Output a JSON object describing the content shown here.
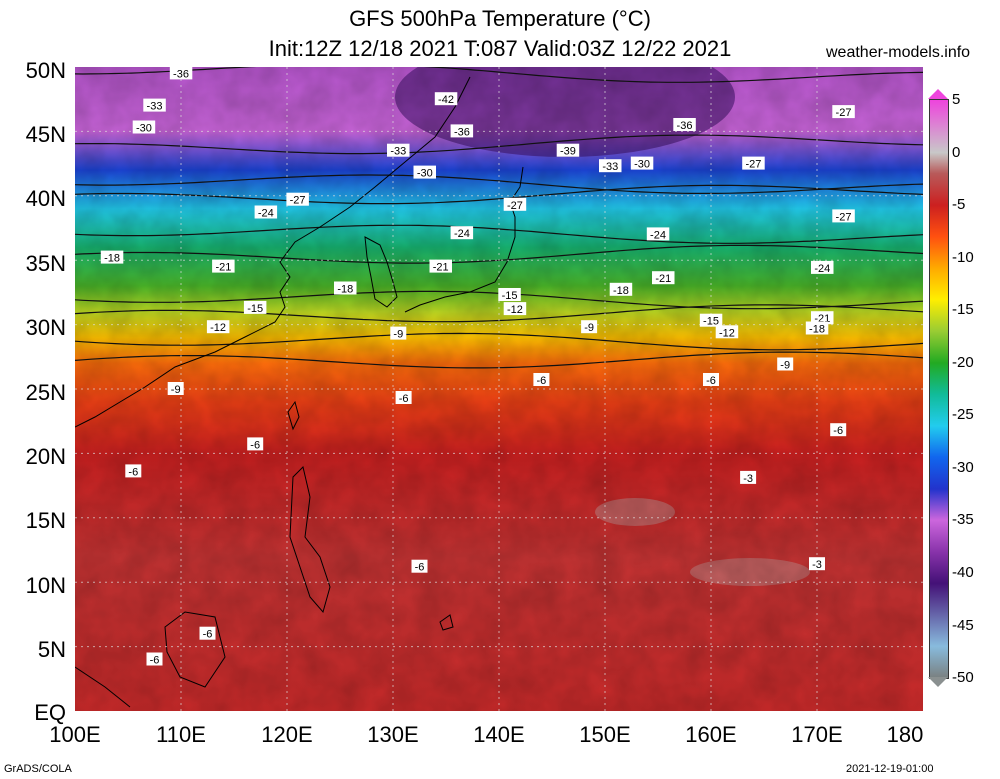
{
  "header": {
    "title_line1": "GFS 500hPa Temperature (°C)",
    "title_line2": "Init:12Z 12/18 2021 T:087 Valid:03Z 12/22 2021",
    "brand": "weather-models.info"
  },
  "footer": {
    "left": "GrADS/COLA",
    "right": "2021-12-19-01:00"
  },
  "axes": {
    "lat_labels": [
      "50N",
      "45N",
      "40N",
      "35N",
      "30N",
      "25N",
      "20N",
      "15N",
      "10N",
      "5N",
      "EQ"
    ],
    "lon_labels": [
      "100E",
      "110E",
      "120E",
      "130E",
      "140E",
      "150E",
      "160E",
      "170E",
      "180"
    ]
  },
  "colorbar": {
    "labels": [
      "5",
      "0",
      "-5",
      "-10",
      "-15",
      "-20",
      "-25",
      "-30",
      "-35",
      "-40",
      "-45",
      "-50"
    ],
    "stops": [
      {
        "value": 5,
        "color": "#ee44dd"
      },
      {
        "value": 0,
        "color": "#c8c8c8"
      },
      {
        "value": -2,
        "color": "#b85a5a"
      },
      {
        "value": -5,
        "color": "#cc2020"
      },
      {
        "value": -8,
        "color": "#ff5010"
      },
      {
        "value": -11,
        "color": "#ffaa00"
      },
      {
        "value": -14,
        "color": "#ffee00"
      },
      {
        "value": -17,
        "color": "#99cc33"
      },
      {
        "value": -20,
        "color": "#22aa22"
      },
      {
        "value": -23,
        "color": "#11bb99"
      },
      {
        "value": -26,
        "color": "#22ccee"
      },
      {
        "value": -29,
        "color": "#1166ee"
      },
      {
        "value": -32,
        "color": "#2233cc"
      },
      {
        "value": -35,
        "color": "#cc66dd"
      },
      {
        "value": -38,
        "color": "#8833aa"
      },
      {
        "value": -41,
        "color": "#441177"
      },
      {
        "value": -44,
        "color": "#6666aa"
      },
      {
        "value": -47,
        "color": "#88bbdd"
      },
      {
        "value": -50,
        "color": "#7a8080"
      }
    ]
  },
  "map": {
    "lon_range": [
      100,
      180
    ],
    "lat_range": [
      0,
      50
    ],
    "temperature_bands": [
      {
        "lat": 50,
        "temp": -36
      },
      {
        "lat": 45,
        "temp": -35
      },
      {
        "lat": 42,
        "temp": -31
      },
      {
        "lat": 39,
        "temp": -26
      },
      {
        "lat": 36,
        "temp": -22
      },
      {
        "lat": 33,
        "temp": -19
      },
      {
        "lat": 31,
        "temp": -16
      },
      {
        "lat": 29,
        "temp": -12
      },
      {
        "lat": 27,
        "temp": -9
      },
      {
        "lat": 24,
        "temp": -7
      },
      {
        "lat": 20,
        "temp": -5
      },
      {
        "lat": 12,
        "temp": -4
      },
      {
        "lat": 0,
        "temp": -4.5
      }
    ],
    "contour_labels": [
      {
        "text": "-36",
        "lon": 110,
        "lat": 49.5
      },
      {
        "text": "-33",
        "lon": 107.5,
        "lat": 47
      },
      {
        "text": "-42",
        "lon": 135,
        "lat": 47.5
      },
      {
        "text": "-30",
        "lon": 106.5,
        "lat": 45.3
      },
      {
        "text": "-36",
        "lon": 136.5,
        "lat": 45
      },
      {
        "text": "-39",
        "lon": 146.5,
        "lat": 43.5
      },
      {
        "text": "-36",
        "lon": 157.5,
        "lat": 45.5
      },
      {
        "text": "-27",
        "lon": 172.5,
        "lat": 46.5
      },
      {
        "text": "-33",
        "lon": 130.5,
        "lat": 43.5
      },
      {
        "text": "-33",
        "lon": 150.5,
        "lat": 42.3
      },
      {
        "text": "-30",
        "lon": 153.5,
        "lat": 42.5
      },
      {
        "text": "-27",
        "lon": 164,
        "lat": 42.5
      },
      {
        "text": "-30",
        "lon": 133,
        "lat": 41.8
      },
      {
        "text": "-27",
        "lon": 121,
        "lat": 39.7
      },
      {
        "text": "-24",
        "lon": 118,
        "lat": 38.7
      },
      {
        "text": "-27",
        "lon": 141.5,
        "lat": 39.3
      },
      {
        "text": "-27",
        "lon": 172.5,
        "lat": 38.4
      },
      {
        "text": "-24",
        "lon": 136.5,
        "lat": 37.1
      },
      {
        "text": "-24",
        "lon": 155,
        "lat": 37
      },
      {
        "text": "-18",
        "lon": 103.5,
        "lat": 35.2
      },
      {
        "text": "-21",
        "lon": 114,
        "lat": 34.5
      },
      {
        "text": "-21",
        "lon": 134.5,
        "lat": 34.5
      },
      {
        "text": "-24",
        "lon": 170.5,
        "lat": 34.4
      },
      {
        "text": "-21",
        "lon": 155.5,
        "lat": 33.6
      },
      {
        "text": "-18",
        "lon": 125.5,
        "lat": 32.8
      },
      {
        "text": "-15",
        "lon": 141,
        "lat": 32.3
      },
      {
        "text": "-18",
        "lon": 151.5,
        "lat": 32.7
      },
      {
        "text": "-15",
        "lon": 117,
        "lat": 31.3
      },
      {
        "text": "-12",
        "lon": 141.5,
        "lat": 31.2
      },
      {
        "text": "-21",
        "lon": 170.5,
        "lat": 30.5
      },
      {
        "text": "-18",
        "lon": 170,
        "lat": 29.7
      },
      {
        "text": "-15",
        "lon": 160,
        "lat": 30.3
      },
      {
        "text": "-12",
        "lon": 161.5,
        "lat": 29.4
      },
      {
        "text": "-12",
        "lon": 113.5,
        "lat": 29.8
      },
      {
        "text": "-9",
        "lon": 130.5,
        "lat": 29.3
      },
      {
        "text": "-9",
        "lon": 148.5,
        "lat": 29.8
      },
      {
        "text": "-9",
        "lon": 167,
        "lat": 26.9
      },
      {
        "text": "-6",
        "lon": 144,
        "lat": 25.7
      },
      {
        "text": "-6",
        "lon": 160,
        "lat": 25.7
      },
      {
        "text": "-9",
        "lon": 109.5,
        "lat": 25.0
      },
      {
        "text": "-6",
        "lon": 131,
        "lat": 24.3
      },
      {
        "text": "-6",
        "lon": 172,
        "lat": 21.8
      },
      {
        "text": "-6",
        "lon": 117,
        "lat": 20.7
      },
      {
        "text": "-6",
        "lon": 105.5,
        "lat": 18.6
      },
      {
        "text": "-3",
        "lon": 163.5,
        "lat": 18.1
      },
      {
        "text": "-6",
        "lon": 132.5,
        "lat": 11.2
      },
      {
        "text": "-3",
        "lon": 170,
        "lat": 11.4
      },
      {
        "text": "-6",
        "lon": 112.5,
        "lat": 6
      },
      {
        "text": "-6",
        "lon": 107.5,
        "lat": 4
      }
    ]
  }
}
